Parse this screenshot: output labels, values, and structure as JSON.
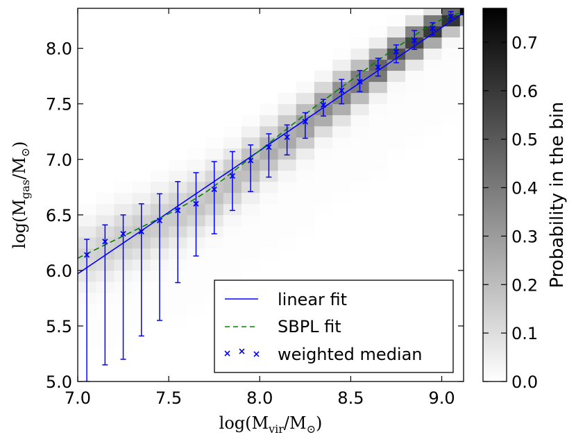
{
  "chart_data": {
    "type": "heatmap",
    "xlabel": {
      "main": "log(M",
      "sub": "vir",
      "mid": "/M",
      "sub2": "⊙",
      "end": ")"
    },
    "ylabel": {
      "main": "log(M",
      "sub": "gas",
      "mid": "/M",
      "sub2": "⊙",
      "end": ")"
    },
    "xlim": [
      7.0,
      9.12
    ],
    "ylim": [
      5.0,
      8.36
    ],
    "xticks": [
      "7.0",
      "7.5",
      "8.0",
      "8.5",
      "9.0"
    ],
    "xtick_values": [
      7.0,
      7.5,
      8.0,
      8.5,
      9.0
    ],
    "yticks": [
      "5.0",
      "5.5",
      "6.0",
      "6.5",
      "7.0",
      "7.5",
      "8.0"
    ],
    "ytick_values": [
      5.0,
      5.5,
      6.0,
      6.5,
      7.0,
      7.5,
      8.0
    ],
    "colorbar": {
      "label": "Probability in the bin",
      "ticks": [
        "0.0",
        "0.1",
        "0.2",
        "0.3",
        "0.4",
        "0.5",
        "0.6",
        "0.7"
      ],
      "tick_values": [
        0.0,
        0.1,
        0.2,
        0.3,
        0.4,
        0.5,
        0.6,
        0.7
      ],
      "range": [
        0.0,
        0.77
      ]
    },
    "heatmap": {
      "x_bin_edges": [
        7.0,
        7.1,
        7.2,
        7.3,
        7.4,
        7.5,
        7.6,
        7.7,
        7.8,
        7.9,
        8.0,
        8.1,
        8.2,
        8.3,
        8.4,
        8.5,
        8.6,
        8.7,
        8.8,
        8.9,
        9.0,
        9.1,
        9.12
      ],
      "y_bin_width": 0.1,
      "columns": [
        {
          "x": 7.0,
          "ridge": 6.15,
          "peak": 0.12,
          "spread": 0.18
        },
        {
          "x": 7.1,
          "ridge": 6.22,
          "peak": 0.14,
          "spread": 0.18
        },
        {
          "x": 7.2,
          "ridge": 6.3,
          "peak": 0.15,
          "spread": 0.18
        },
        {
          "x": 7.3,
          "ridge": 6.36,
          "peak": 0.16,
          "spread": 0.18
        },
        {
          "x": 7.4,
          "ridge": 6.44,
          "peak": 0.16,
          "spread": 0.18
        },
        {
          "x": 7.5,
          "ridge": 6.52,
          "peak": 0.16,
          "spread": 0.18
        },
        {
          "x": 7.6,
          "ridge": 6.6,
          "peak": 0.17,
          "spread": 0.17
        },
        {
          "x": 7.7,
          "ridge": 6.7,
          "peak": 0.18,
          "spread": 0.17
        },
        {
          "x": 7.8,
          "ridge": 6.82,
          "peak": 0.2,
          "spread": 0.16
        },
        {
          "x": 7.9,
          "ridge": 6.95,
          "peak": 0.22,
          "spread": 0.16
        },
        {
          "x": 8.0,
          "ridge": 7.08,
          "peak": 0.24,
          "spread": 0.15
        },
        {
          "x": 8.1,
          "ridge": 7.2,
          "peak": 0.26,
          "spread": 0.15
        },
        {
          "x": 8.2,
          "ridge": 7.32,
          "peak": 0.3,
          "spread": 0.14
        },
        {
          "x": 8.3,
          "ridge": 7.46,
          "peak": 0.34,
          "spread": 0.13
        },
        {
          "x": 8.4,
          "ridge": 7.58,
          "peak": 0.38,
          "spread": 0.13
        },
        {
          "x": 8.5,
          "ridge": 7.7,
          "peak": 0.42,
          "spread": 0.12
        },
        {
          "x": 8.6,
          "ridge": 7.82,
          "peak": 0.48,
          "spread": 0.11
        },
        {
          "x": 8.7,
          "ridge": 7.95,
          "peak": 0.52,
          "spread": 0.1
        },
        {
          "x": 8.8,
          "ridge": 8.06,
          "peak": 0.56,
          "spread": 0.1
        },
        {
          "x": 8.9,
          "ridge": 8.17,
          "peak": 0.6,
          "spread": 0.09
        },
        {
          "x": 9.0,
          "ridge": 8.28,
          "peak": 0.65,
          "spread": 0.08
        },
        {
          "x": 9.1,
          "ridge": 8.35,
          "peak": 0.77,
          "spread": 0.06
        }
      ]
    },
    "series": [
      {
        "name": "linear fit",
        "type": "line",
        "color": "#0000ff",
        "style": "solid",
        "x": [
          7.0,
          9.12
        ],
        "y": [
          5.97,
          8.32
        ]
      },
      {
        "name": "SBPL fit",
        "type": "line",
        "color": "#008000",
        "style": "dashed",
        "x": [
          7.0,
          7.1,
          7.2,
          7.3,
          7.4,
          7.5,
          7.6,
          7.7,
          7.8,
          7.9,
          8.0,
          8.1,
          8.2,
          8.3,
          8.4,
          8.5,
          8.6,
          8.7,
          8.8,
          8.9,
          9.0,
          9.12
        ],
        "y": [
          6.11,
          6.19,
          6.27,
          6.35,
          6.43,
          6.51,
          6.6,
          6.7,
          6.82,
          6.95,
          7.08,
          7.21,
          7.34,
          7.47,
          7.59,
          7.71,
          7.83,
          7.95,
          8.06,
          8.17,
          8.26,
          8.33
        ]
      },
      {
        "name": "weighted median",
        "type": "scatter",
        "marker": "x",
        "color": "#0000ff",
        "x": [
          7.05,
          7.15,
          7.25,
          7.35,
          7.45,
          7.55,
          7.65,
          7.75,
          7.85,
          7.95,
          8.05,
          8.15,
          8.25,
          8.35,
          8.45,
          8.55,
          8.65,
          8.75,
          8.85,
          8.95,
          9.05
        ],
        "y": [
          6.14,
          6.26,
          6.33,
          6.35,
          6.45,
          6.54,
          6.6,
          6.73,
          6.85,
          6.99,
          7.11,
          7.2,
          7.34,
          7.49,
          7.62,
          7.7,
          7.83,
          7.97,
          8.07,
          8.18,
          8.29
        ],
        "err_low": [
          5.0,
          5.15,
          5.2,
          5.41,
          5.55,
          5.89,
          6.13,
          6.33,
          6.54,
          6.71,
          6.84,
          7.04,
          7.19,
          7.39,
          7.5,
          7.61,
          7.75,
          7.87,
          7.99,
          8.12,
          8.25
        ],
        "err_high": [
          6.28,
          6.41,
          6.5,
          6.6,
          6.69,
          6.8,
          6.88,
          6.98,
          7.07,
          7.13,
          7.23,
          7.31,
          7.42,
          7.54,
          7.72,
          7.8,
          7.91,
          8.03,
          8.16,
          8.23,
          8.33
        ]
      }
    ],
    "legend": {
      "placement": "lower-right",
      "entries": [
        "linear fit",
        "SBPL fit",
        "weighted median"
      ]
    }
  }
}
